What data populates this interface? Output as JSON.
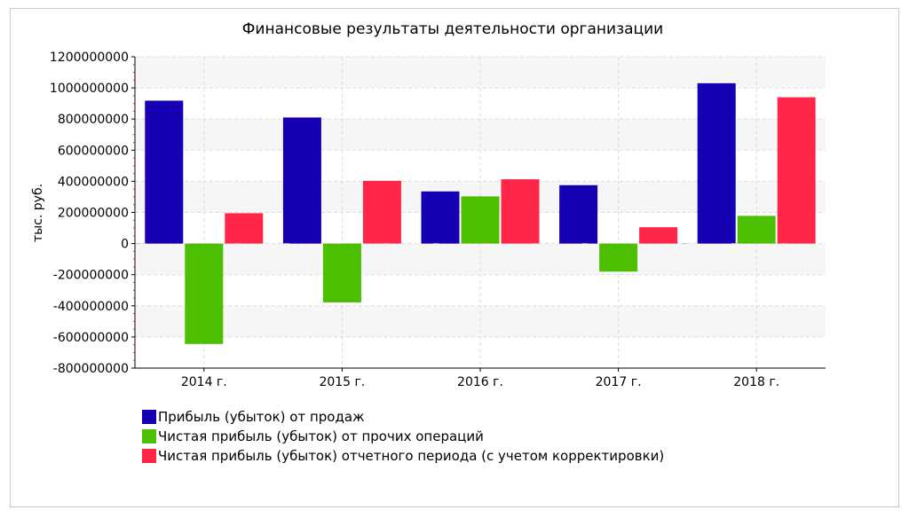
{
  "chart_data": {
    "type": "bar",
    "title": "Финансовые результаты деятельности организации",
    "xlabel": "",
    "ylabel": "тыс. руб.",
    "categories": [
      "2014 г.",
      "2015 г.",
      "2016 г.",
      "2017 г.",
      "2018 г."
    ],
    "ylim": [
      -800000000,
      1200000000
    ],
    "yticks": [
      1200000000,
      1000000000,
      800000000,
      600000000,
      400000000,
      200000000,
      0,
      -200000000,
      -400000000,
      -600000000,
      -800000000
    ],
    "ytick_labels": [
      "1200000000",
      "1000000000",
      "800000000",
      "600000000",
      "400000000",
      "200000000",
      "0",
      "-200000000",
      "-400000000",
      "-600000000",
      "-800000000"
    ],
    "grid": true,
    "legend_position": "bottom-left",
    "series": [
      {
        "name": "Прибыль (убыток) от продаж",
        "color": "#1500b4",
        "values": [
          918000000,
          810000000,
          335000000,
          375000000,
          1030000000
        ]
      },
      {
        "name": "Чистая прибыль (убыток) от прочих операций",
        "color": "#4bbf00",
        "values": [
          -645000000,
          -378000000,
          303000000,
          -180000000,
          178000000
        ]
      },
      {
        "name": "Чистая прибыль (убыток) отчетного периода (с учетом корректировки)",
        "color": "#ff2649",
        "values": [
          195000000,
          403000000,
          413000000,
          105000000,
          940000000
        ]
      }
    ]
  }
}
